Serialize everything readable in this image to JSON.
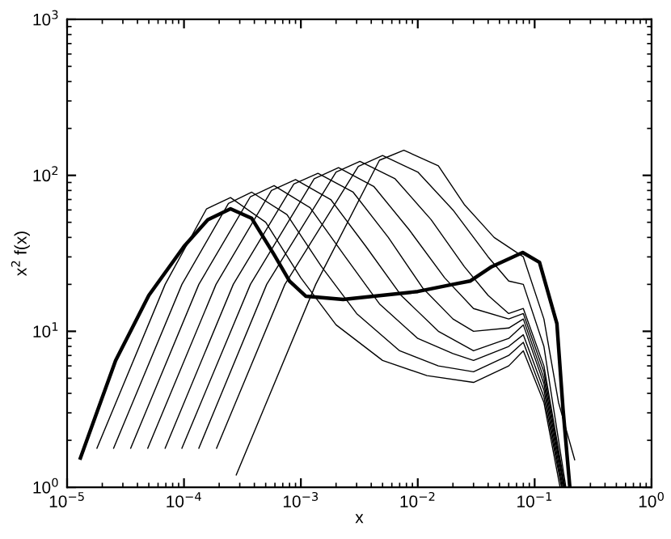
{
  "chart_data": {
    "type": "line",
    "xlabel": "x",
    "ylabel": "x$^{2}$ f(x)",
    "log": "xy",
    "grid": false,
    "legend": false,
    "marker": "none",
    "line_style": "solid",
    "xlim": [
      1e-05,
      1
    ],
    "ylim": [
      1,
      1000
    ],
    "xticks": [
      {
        "value": 1e-05,
        "label": "10$^{−5}$"
      },
      {
        "value": 0.0001,
        "label": "10$^{−4}$"
      },
      {
        "value": 0.001,
        "label": "10$^{−3}$"
      },
      {
        "value": 0.01,
        "label": "10$^{−2}$"
      },
      {
        "value": 0.1,
        "label": "10$^{−1}$"
      },
      {
        "value": 1,
        "label": "10$^{0}$"
      }
    ],
    "yticks": [
      {
        "value": 1,
        "label": "10$^{0}$"
      },
      {
        "value": 10,
        "label": "10$^{1}$"
      },
      {
        "value": 100,
        "label": "10$^{2}$"
      },
      {
        "value": 1000,
        "label": "10$^{3}$"
      }
    ],
    "series": [
      {
        "color": "#000000",
        "x": [
          1.3e-05,
          2.6e-05,
          5e-05,
          0.0001,
          0.00016,
          0.00025,
          0.00038,
          0.00059,
          0.0008,
          0.0011,
          0.0023,
          0.01,
          0.02,
          0.028,
          0.043,
          0.079,
          0.11,
          0.155,
          0.175,
          0.2
        ],
        "values": [
          1.54,
          6.5,
          17,
          35,
          52,
          61,
          53,
          31,
          21,
          16.8,
          16,
          18,
          20,
          21,
          26,
          32,
          27.7,
          11.2,
          3.15,
          1
        ]
      },
      {
        "color": "#000000",
        "x": [
          1.8e-05,
          6.9e-05,
          0.000156,
          0.00025,
          0.0005,
          0.001,
          0.002,
          0.005,
          0.012,
          0.03,
          0.06,
          0.08,
          0.12,
          0.165
        ],
        "values": [
          1.78,
          20,
          61,
          72,
          50,
          22,
          11,
          6.5,
          5.2,
          4.7,
          6,
          7.5,
          3.5,
          1
        ]
      },
      {
        "color": "#000000",
        "x": [
          2.5e-05,
          9.6e-05,
          0.00024,
          0.00038,
          0.00076,
          0.0015,
          0.003,
          0.007,
          0.015,
          0.03,
          0.06,
          0.08,
          0.12,
          0.17
        ],
        "values": [
          1.78,
          20,
          66,
          78,
          56,
          26,
          13,
          7.5,
          6,
          5.5,
          7,
          8.5,
          3.8,
          1
        ]
      },
      {
        "color": "#000000",
        "x": [
          3.5e-05,
          0.000134,
          0.00037,
          0.00059,
          0.0012,
          0.0024,
          0.0047,
          0.01,
          0.02,
          0.03,
          0.06,
          0.08,
          0.12,
          0.172
        ],
        "values": [
          1.78,
          20,
          73,
          86,
          62,
          30,
          15,
          9,
          7.2,
          6.5,
          8,
          9.5,
          4.2,
          1
        ]
      },
      {
        "color": "#000000",
        "x": [
          4.9e-05,
          0.000188,
          0.00056,
          0.0009,
          0.0018,
          0.0036,
          0.0072,
          0.015,
          0.03,
          0.06,
          0.08,
          0.12,
          0.175
        ],
        "values": [
          1.78,
          20,
          80,
          94,
          70,
          35,
          17,
          10,
          7.5,
          9,
          11,
          4.6,
          1
        ]
      },
      {
        "color": "#000000",
        "x": [
          6.9e-05,
          0.000264,
          0.00087,
          0.0014,
          0.0028,
          0.0056,
          0.011,
          0.02,
          0.03,
          0.06,
          0.08,
          0.12,
          0.178
        ],
        "values": [
          1.78,
          20,
          88,
          103,
          78,
          40,
          19,
          12,
          10,
          10.5,
          12,
          5,
          1
        ]
      },
      {
        "color": "#000000",
        "x": [
          9.6e-05,
          0.00037,
          0.0013,
          0.0021,
          0.0042,
          0.0084,
          0.017,
          0.03,
          0.06,
          0.08,
          0.12,
          0.18
        ],
        "values": [
          1.78,
          20,
          95,
          112,
          85,
          45,
          22,
          14,
          12,
          13,
          5.5,
          1
        ]
      },
      {
        "color": "#000000",
        "x": [
          0.000134,
          0.00051,
          0.002,
          0.0032,
          0.0064,
          0.013,
          0.025,
          0.04,
          0.06,
          0.08,
          0.12,
          0.182
        ],
        "values": [
          1.78,
          20,
          105,
          123,
          95,
          52,
          26,
          17,
          13,
          14,
          6,
          1
        ]
      },
      {
        "color": "#000000",
        "x": [
          0.00019,
          0.00073,
          0.0031,
          0.005,
          0.01,
          0.02,
          0.04,
          0.06,
          0.08,
          0.12,
          0.185
        ],
        "values": [
          1.78,
          20,
          114,
          134,
          105,
          60,
          30,
          21,
          20,
          8,
          1
        ]
      },
      {
        "color": "#000000",
        "x": [
          0.00028,
          0.00134,
          0.0047,
          0.0076,
          0.015,
          0.025,
          0.045,
          0.08,
          0.12,
          0.16,
          0.22
        ],
        "values": [
          1.2,
          20,
          125,
          145,
          115,
          65,
          40,
          30,
          12,
          3.5,
          1.5
        ]
      }
    ]
  }
}
